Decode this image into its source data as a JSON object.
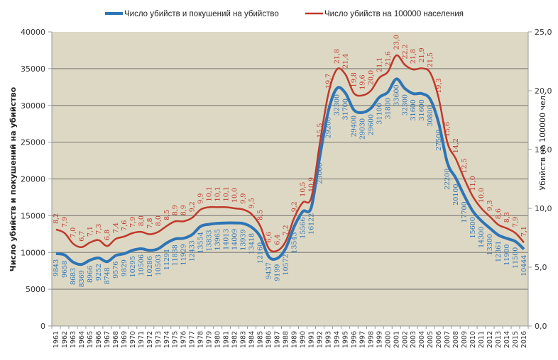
{
  "chart_data": {
    "type": "line",
    "title": "",
    "xlabel": "",
    "ylabel": "Число убийств и покушений на убийство",
    "y2label": "Убийств на 100000 чел.",
    "ylim": [
      0,
      40000
    ],
    "y2lim": [
      0.0,
      25.0
    ],
    "yticks": [
      "0",
      "5000",
      "10000",
      "15000",
      "20000",
      "25000",
      "30000",
      "35000",
      "40000"
    ],
    "y2ticks": [
      "0,0",
      "5,0",
      "10,0",
      "15,0",
      "20,0",
      "25,0"
    ],
    "grid": true,
    "legend": "top-center",
    "x": [
      1961,
      1962,
      1963,
      1964,
      1965,
      1966,
      1967,
      1968,
      1969,
      1970,
      1971,
      1972,
      1973,
      1974,
      1975,
      1976,
      1977,
      1978,
      1979,
      1980,
      1981,
      1982,
      1983,
      1984,
      1985,
      1986,
      1987,
      1988,
      1989,
      1990,
      1991,
      1992,
      1993,
      1994,
      1995,
      1996,
      1997,
      1998,
      1999,
      2000,
      2001,
      2002,
      2003,
      2004,
      2005,
      2006,
      2007,
      2008,
      2009,
      2010,
      2011,
      2012,
      2013,
      2014,
      2015,
      2016
    ],
    "series": [
      {
        "name": "Число убийств и покушений  на убийство",
        "axis": "left",
        "color": "#2e75b6",
        "values": [
          9843,
          9658,
          8683,
          8369,
          8966,
          9252,
          8748,
          9576,
          9829,
          10295,
          10506,
          10286,
          10503,
          11291,
          11838,
          11929,
          12433,
          13554,
          13833,
          13965,
          14013,
          14009,
          13939,
          13418,
          12160,
          9437,
          9199,
          10572,
          13543,
          15566,
          16122,
          23000,
          29200,
          32300,
          31700,
          29400,
          29030,
          29600,
          31100,
          31800,
          33600,
          32300,
          31600,
          31600,
          30800,
          27500,
          22200,
          20100,
          17700,
          15600,
          14300,
          13300,
          12361,
          11900,
          11500,
          10444
        ],
        "labels": [
          "9843",
          "9658",
          "8683",
          "8369",
          "8966",
          "9252",
          "8748",
          "9576",
          "9829",
          "10295",
          "10506",
          "10286",
          "10503",
          "11291",
          "11838",
          "11929",
          "12433",
          "13554",
          "13833",
          "13965",
          "14013",
          "14009",
          "13939",
          "13418",
          "12160",
          "9437",
          "9199",
          "10572",
          "13543",
          "15566",
          "16122",
          "23000",
          "29200",
          "32300",
          "31700",
          "29400",
          "29030",
          "29600",
          "31100",
          "31800",
          "33600",
          "32300",
          "31600",
          "31600",
          "30800",
          "27500",
          "22200",
          "20100",
          "17700",
          "15600",
          "14300",
          "13300",
          "12361",
          "11900",
          "11500",
          "10444"
        ]
      },
      {
        "name": "Число убийств на 100000 населения",
        "axis": "right",
        "color": "#c0392b",
        "values": [
          8.2,
          7.9,
          7.0,
          6.7,
          7.1,
          7.3,
          6.8,
          7.4,
          7.6,
          7.9,
          8.0,
          7.8,
          8.0,
          8.5,
          8.9,
          8.9,
          9.2,
          9.9,
          10.1,
          10.1,
          10.1,
          10.0,
          9.9,
          9.5,
          8.5,
          6.6,
          6.4,
          7.2,
          9.2,
          10.5,
          10.9,
          15.5,
          19.7,
          21.8,
          21.4,
          19.8,
          19.6,
          20.0,
          21.1,
          21.6,
          23.0,
          22.2,
          21.8,
          21.9,
          21.5,
          19.3,
          15.6,
          14.2,
          12.5,
          11.0,
          10.0,
          9.3,
          8.6,
          8.3,
          7.9,
          7.1
        ],
        "labels": [
          "8,2",
          "7,9",
          "7,0",
          "6,7",
          "7,1",
          "7,3",
          "6,8",
          "7,4",
          "7,6",
          "7,9",
          "8,0",
          "7,8",
          "8,0",
          "8,5",
          "8,9",
          "8,9",
          "9,2",
          "9,9",
          "10,1",
          "10,1",
          "10,1",
          "10,0",
          "9,9",
          "9,5",
          "8,5",
          "6,6",
          "6,4",
          "7,2",
          "9,2",
          "10,5",
          "10,9",
          "15,5",
          "19,7",
          "21,8",
          "21,4",
          "19,8",
          "19,6",
          "20,0",
          "21,1",
          "21,6",
          "23,0",
          "22,2",
          "21,8",
          "21,9",
          "21,5",
          "19,3",
          "15,6",
          "14,2",
          "12,5",
          "11,0",
          "10,0",
          "9,3",
          "8,6",
          "8,3",
          "7,9",
          "7,1"
        ]
      }
    ]
  },
  "colors": {
    "plot_background": "#ddd8c4",
    "gridline": "#8c8a82",
    "blue": "#2e75b6",
    "red": "#c0392b"
  }
}
